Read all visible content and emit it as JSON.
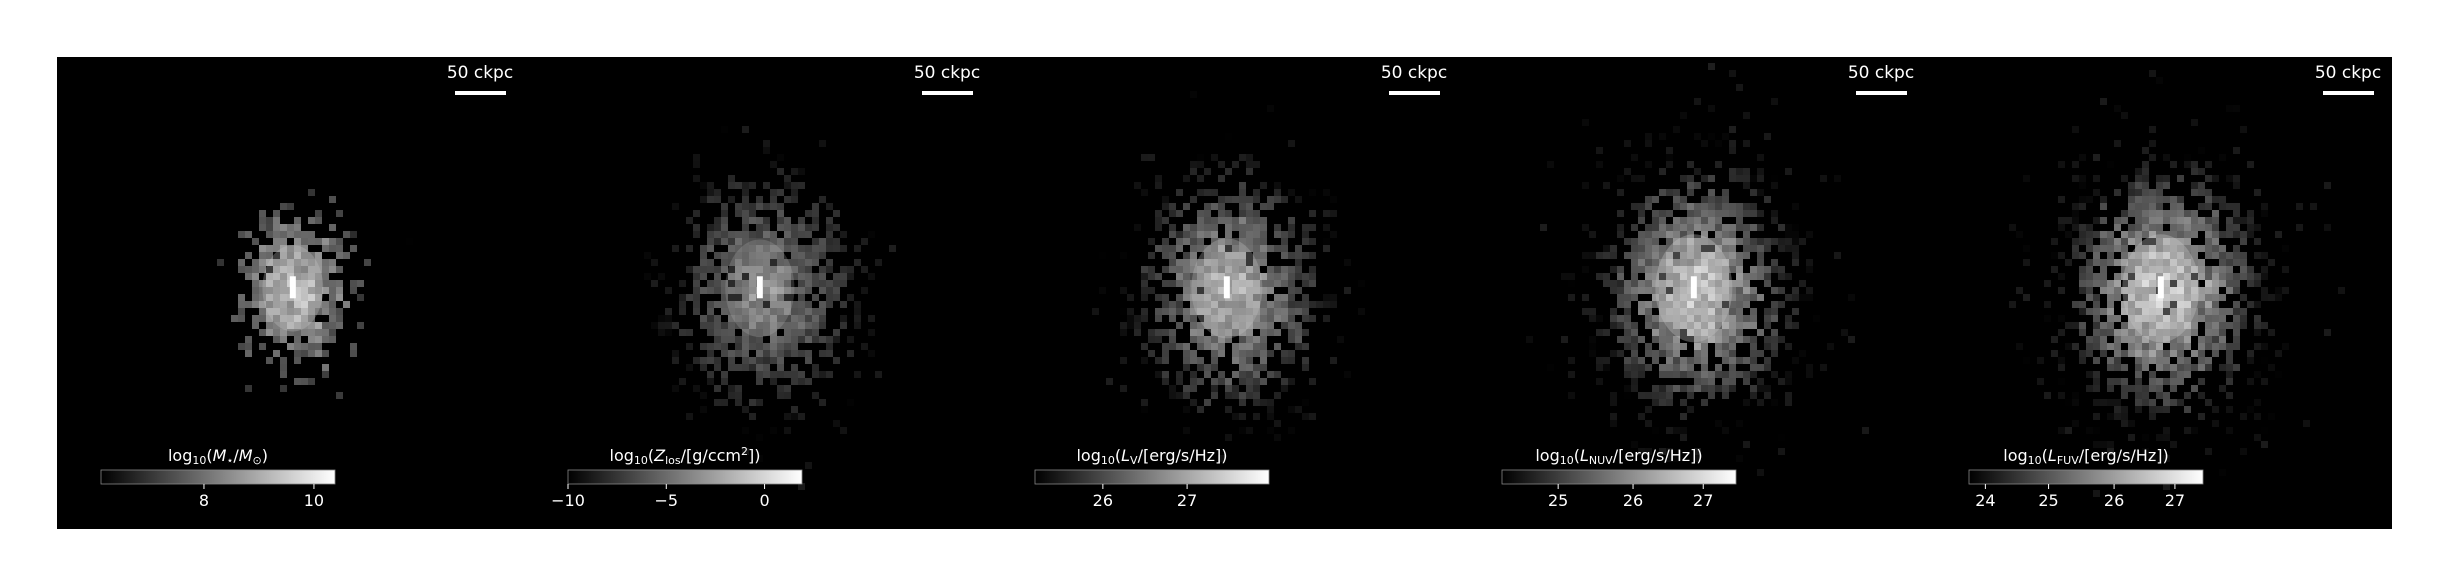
{
  "figure": {
    "panels": [
      {
        "scale_bar_label": "50 ckpc",
        "colorbar": {
          "label_parts": [
            {
              "text": "log",
              "style": "normal"
            },
            {
              "text": "10",
              "style": "sub"
            },
            {
              "text": "(",
              "style": "normal"
            },
            {
              "text": "M",
              "style": "italic"
            },
            {
              "text": "⋆",
              "style": "sub"
            },
            {
              "text": "/",
              "style": "normal"
            },
            {
              "text": "M",
              "style": "italic"
            },
            {
              "text": "⊙",
              "style": "sub"
            },
            {
              "text": ")",
              "style": "normal"
            }
          ],
          "ticks": [
            "8",
            "10"
          ],
          "tick_positions": [
            0.44,
            0.91
          ]
        },
        "image": {
          "seed": 11,
          "cluster_size": 0.28,
          "brightness": 0.85,
          "scatter": 0.25,
          "extent": 0.42
        }
      },
      {
        "scale_bar_label": "50 ckpc",
        "colorbar": {
          "label_parts": [
            {
              "text": "log",
              "style": "normal"
            },
            {
              "text": "10",
              "style": "sub"
            },
            {
              "text": "(",
              "style": "normal"
            },
            {
              "text": "Z",
              "style": "italic"
            },
            {
              "text": "los",
              "style": "sub"
            },
            {
              "text": "/[g/ccm",
              "style": "normal"
            },
            {
              "text": "2",
              "style": "sup"
            },
            {
              "text": "])",
              "style": "normal"
            }
          ],
          "ticks": [
            "−10",
            "−5",
            "0"
          ],
          "tick_positions": [
            0.0,
            0.42,
            0.84
          ]
        },
        "image": {
          "seed": 23,
          "cluster_size": 0.42,
          "brightness": 0.6,
          "scatter": 0.7,
          "extent": 0.7
        }
      },
      {
        "scale_bar_label": "50 ckpc",
        "colorbar": {
          "label_parts": [
            {
              "text": "log",
              "style": "normal"
            },
            {
              "text": "10",
              "style": "sub"
            },
            {
              "text": "(",
              "style": "normal"
            },
            {
              "text": "L",
              "style": "italic"
            },
            {
              "text": "V",
              "style": "sub"
            },
            {
              "text": "/[erg/s/Hz])",
              "style": "normal"
            }
          ],
          "ticks": [
            "26",
            "27"
          ],
          "tick_positions": [
            0.29,
            0.65
          ]
        },
        "image": {
          "seed": 37,
          "cluster_size": 0.45,
          "brightness": 0.8,
          "scatter": 0.75,
          "extent": 0.72
        }
      },
      {
        "scale_bar_label": "50 ckpc",
        "colorbar": {
          "label_parts": [
            {
              "text": "log",
              "style": "normal"
            },
            {
              "text": "10",
              "style": "sub"
            },
            {
              "text": "(",
              "style": "normal"
            },
            {
              "text": "L",
              "style": "italic"
            },
            {
              "text": "NUV",
              "style": "sub"
            },
            {
              "text": "/[erg/s/Hz])",
              "style": "normal"
            }
          ],
          "ticks": [
            "25",
            "26",
            "27"
          ],
          "tick_positions": [
            0.24,
            0.56,
            0.86
          ]
        },
        "image": {
          "seed": 53,
          "cluster_size": 0.55,
          "brightness": 0.95,
          "scatter": 0.95,
          "extent": 0.85
        }
      },
      {
        "scale_bar_label": "50 ckpc",
        "colorbar": {
          "label_parts": [
            {
              "text": "log",
              "style": "normal"
            },
            {
              "text": "10",
              "style": "sub"
            },
            {
              "text": "(",
              "style": "normal"
            },
            {
              "text": "L",
              "style": "italic"
            },
            {
              "text": "FUV",
              "style": "sub"
            },
            {
              "text": "/[erg/s/Hz])",
              "style": "normal"
            }
          ],
          "ticks": [
            "24",
            "25",
            "26",
            "27"
          ],
          "tick_positions": [
            0.07,
            0.34,
            0.62,
            0.88
          ]
        },
        "image": {
          "seed": 71,
          "cluster_size": 0.55,
          "brightness": 1.0,
          "scatter": 1.0,
          "extent": 0.88
        }
      }
    ]
  },
  "colors": {
    "background": "#000000",
    "foreground": "#ffffff",
    "page": "#ffffff"
  }
}
